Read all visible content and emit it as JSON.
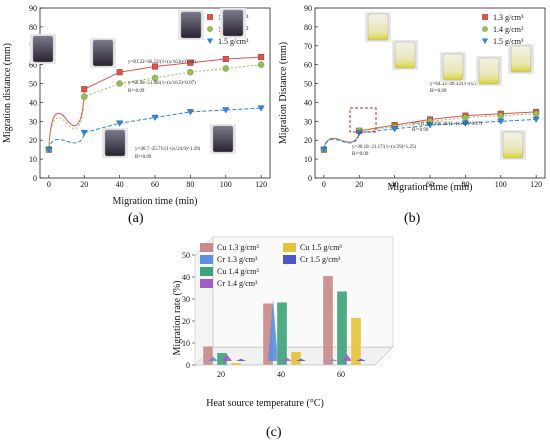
{
  "figure": {
    "panels": [
      {
        "id": "a",
        "label": "(a)"
      },
      {
        "id": "b",
        "label": "(b)"
      },
      {
        "id": "c",
        "label": "(c)"
      }
    ]
  },
  "chart_data": [
    {
      "type": "scatter",
      "title": "",
      "xlabel": "Migration time (min)",
      "ylabel": "Migration distance (mm)",
      "xlim": [
        -5,
        125
      ],
      "ylim": [
        0,
        90
      ],
      "xticks": [
        0,
        20,
        40,
        60,
        80,
        100,
        120
      ],
      "yticks": [
        0,
        10,
        20,
        30,
        40,
        50,
        60,
        70,
        80,
        90
      ],
      "legend_position": "top-right",
      "x": [
        0,
        20,
        40,
        60,
        80,
        100,
        120
      ],
      "series": [
        {
          "name": "1.3 g/cm³",
          "color": "#d9534f",
          "marker": "square",
          "values": [
            15,
            47,
            56,
            59,
            61,
            63,
            64
          ],
          "fit": "y=81.22-66.22/(1+(x/16.6)^0.58)  R²=0.99"
        },
        {
          "name": "1.4 g/cm³",
          "color": "#9bbb59",
          "marker": "circle",
          "values": [
            15,
            43,
            50,
            53,
            56,
            58,
            60
          ],
          "fit": "y=66.98-51.98/(1+(x/16.5)^0.97)  R²=0.99"
        },
        {
          "name": "1.5 g/cm³",
          "color": "#2e86de",
          "marker": "triangle-down",
          "values": [
            15,
            24,
            29,
            32,
            35,
            36,
            37
          ],
          "fit": "y=40.7-25.71/(1+(x/24.9)^1.29)  R²=0.99"
        }
      ],
      "annotations": [
        "y=81.22−66.22/(1+(x/16.6)^0.58)",
        "y=66.98−51.98/(1+(x/16.5)^0.97)",
        "R²=0.99",
        "y=40.7−25.71/(1+(x/24.9)^1.29)",
        "R²=0.99"
      ]
    },
    {
      "type": "scatter",
      "title": "",
      "xlabel": "Migration time (min)",
      "ylabel": "Migration Distance (mm)",
      "xlim": [
        -5,
        125
      ],
      "ylim": [
        0,
        90
      ],
      "xticks": [
        0,
        20,
        40,
        60,
        80,
        100,
        120
      ],
      "yticks": [
        0,
        10,
        20,
        30,
        40,
        50,
        60,
        70,
        80,
        90
      ],
      "legend_position": "top-right",
      "x": [
        0,
        20,
        40,
        60,
        80,
        100,
        120
      ],
      "series": [
        {
          "name": "1.3 g/cm³",
          "color": "#d9534f",
          "marker": "square",
          "values": [
            15,
            25,
            28,
            31,
            33,
            34,
            35
          ]
        },
        {
          "name": "1.4 g/cm³",
          "color": "#9bbb59",
          "marker": "circle",
          "values": [
            15,
            25,
            27,
            30,
            32,
            33,
            34
          ]
        },
        {
          "name": "1.5 g/cm³",
          "color": "#2e86de",
          "marker": "triangle-down",
          "values": [
            15,
            24,
            26,
            28,
            29,
            30,
            31
          ]
        }
      ],
      "annotations": [
        "y=64.33−49.33/(1+(x/220.2)^0.62)",
        "R²=0.99",
        "y=511.41−496.38/(1+(x/4.8)^0.27)",
        "R²=0.99",
        "y=36.18−21.17/(1+(x/29)^1.25)",
        "R²=0.99"
      ]
    },
    {
      "type": "bar",
      "title": "",
      "xlabel": "Heat source temperature (°C)",
      "ylabel": "Migration rate (%)",
      "ylim": [
        0,
        50
      ],
      "yticks": [
        0,
        10,
        20,
        30,
        40,
        50
      ],
      "categories": [
        "20",
        "40",
        "60"
      ],
      "legend_position": "top-left",
      "series": [
        {
          "name": "Cu 1.3 g/cm³",
          "color": "#c98a8a",
          "values": [
            8.5,
            28,
            40.5
          ]
        },
        {
          "name": "Cr 1.3 g/cm³",
          "color": "#5b8fe0",
          "values": [
            2,
            28,
            0.8
          ]
        },
        {
          "name": "Cu 1.4 g/cm³",
          "color": "#3fa27a",
          "values": [
            5.5,
            28.5,
            33.5
          ]
        },
        {
          "name": "Cr 1.4 g/cm³",
          "color": "#a05cc8",
          "values": [
            3,
            1.5,
            3
          ]
        },
        {
          "name": "Cu 1.5 g/cm³",
          "color": "#e6c23a",
          "values": [
            1,
            6,
            21.5
          ]
        },
        {
          "name": "Cr 1.5 g/cm³",
          "color": "#4a58c8",
          "values": [
            1,
            1,
            1
          ]
        }
      ]
    }
  ]
}
